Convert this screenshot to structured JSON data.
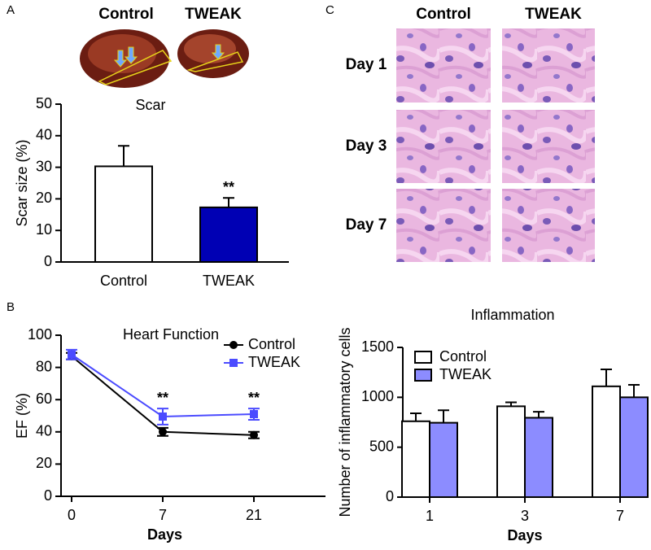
{
  "panel_labels": [
    "A",
    "B",
    "C"
  ],
  "photos": {
    "labels": [
      "Control",
      "TWEAK"
    ]
  },
  "histology": {
    "columns": [
      "Control",
      "TWEAK"
    ],
    "rows": [
      "Day 1",
      "Day 3",
      "Day 7"
    ]
  },
  "chart_data": [
    {
      "type": "bar",
      "title": "Scar",
      "ylabel": "Scar size (%)",
      "categories": [
        "Control",
        "TWEAK"
      ],
      "values": [
        30.3,
        17.3
      ],
      "errors": [
        6.5,
        3.0
      ],
      "colors": [
        "#ffffff",
        "#0000b4"
      ],
      "significance": [
        null,
        "**"
      ],
      "ylim": [
        0,
        50
      ],
      "yticks": [
        0,
        10,
        20,
        30,
        40,
        50
      ]
    },
    {
      "type": "line",
      "title": "Heart Function",
      "ylabel": "EF (%)",
      "xlabel": "Days",
      "categories": [
        "0",
        "7",
        "21"
      ],
      "series": [
        {
          "name": "Control",
          "color": "#000000",
          "marker": "circle",
          "values": [
            87,
            40,
            38
          ],
          "errors": [
            2,
            2.5,
            2
          ]
        },
        {
          "name": "TWEAK",
          "color": "#4b4bff",
          "marker": "square",
          "values": [
            88,
            49.5,
            51
          ],
          "errors": [
            3,
            5,
            3.5
          ]
        }
      ],
      "significance": [
        null,
        "**",
        "**"
      ],
      "legend": "upper right",
      "ylim": [
        0,
        100
      ],
      "yticks": [
        0,
        20,
        40,
        60,
        80,
        100
      ]
    },
    {
      "type": "bar",
      "title": "Inflammation",
      "ylabel": "Number of inflammatory cells",
      "xlabel": "Days",
      "categories": [
        "1",
        "3",
        "7"
      ],
      "series": [
        {
          "name": "Control",
          "color": "#ffffff",
          "values": [
            760,
            910,
            1110
          ],
          "errors": [
            80,
            40,
            170
          ]
        },
        {
          "name": "TWEAK",
          "color": "#8c8cff",
          "values": [
            745,
            795,
            1000
          ],
          "errors": [
            125,
            60,
            125
          ]
        }
      ],
      "legend": "upper left",
      "ylim": [
        0,
        1500
      ],
      "yticks": [
        0,
        500,
        1000,
        1500
      ]
    }
  ]
}
